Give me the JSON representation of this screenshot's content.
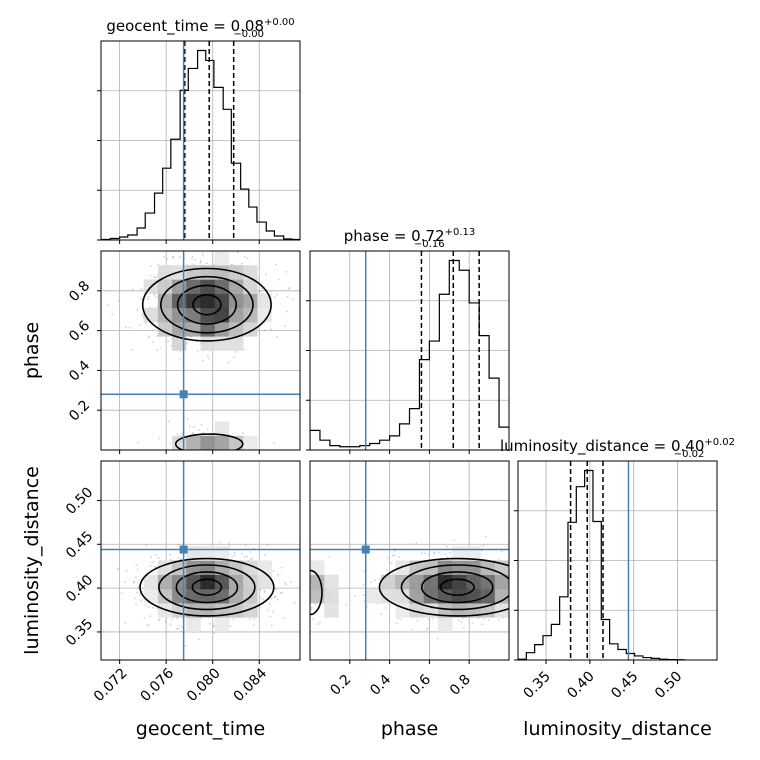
{
  "chart_data": {
    "type": "corner",
    "parameters": [
      "geocent_time",
      "phase",
      "luminosity_distance"
    ],
    "titles": [
      {
        "param": "geocent_time",
        "prefix": "geocent_time = 0.08",
        "plus": "+0.00",
        "minus": "−0.00"
      },
      {
        "param": "phase",
        "prefix": "phase = 0.72",
        "plus": "+0.13",
        "minus": "−0.16"
      },
      {
        "param": "luminosity_distance",
        "prefix": "luminosity_distance = 0.40",
        "plus": "+0.02",
        "minus": "−0.02"
      }
    ],
    "ranges": {
      "geocent_time": [
        0.0704,
        0.0875
      ],
      "phase": [
        0.0,
        1.0
      ],
      "luminosity_distance": [
        0.318,
        0.545
      ]
    },
    "truths": {
      "geocent_time": 0.0775,
      "phase": 0.28,
      "luminosity_distance": 0.444
    },
    "quantiles": {
      "geocent_time": [
        0.0776,
        0.0797,
        0.0818
      ],
      "phase": [
        0.56,
        0.72,
        0.85
      ],
      "luminosity_distance": [
        0.378,
        0.397,
        0.415
      ]
    },
    "histograms": {
      "geocent_time": {
        "bin_edges": [
          0.0705,
          0.0712,
          0.072,
          0.0727,
          0.0735,
          0.0742,
          0.075,
          0.0757,
          0.0764,
          0.0772,
          0.0779,
          0.0787,
          0.0794,
          0.0801,
          0.0809,
          0.0816,
          0.0824,
          0.0831,
          0.0838,
          0.0846,
          0.0853,
          0.0861,
          0.0868,
          0.0875
        ],
        "counts": [
          0.5,
          1.5,
          3,
          5,
          12,
          27,
          47,
          72,
          101,
          150,
          172,
          190,
          180,
          153,
          131,
          77,
          51,
          33,
          18,
          9,
          4,
          1,
          0.5
        ]
      },
      "phase": {
        "bin_edges": [
          0.0,
          0.05,
          0.1,
          0.15,
          0.2,
          0.25,
          0.3,
          0.35,
          0.4,
          0.45,
          0.5,
          0.55,
          0.6,
          0.65,
          0.7,
          0.75,
          0.8,
          0.85,
          0.9,
          0.95,
          1.0
        ],
        "counts": [
          18,
          9,
          4,
          3,
          3,
          4,
          6,
          9,
          13,
          24,
          38,
          83,
          100,
          143,
          174,
          165,
          135,
          105,
          66,
          21
        ]
      },
      "luminosity_distance": {
        "bin_edges": [
          0.318,
          0.3275,
          0.337,
          0.3465,
          0.356,
          0.3655,
          0.375,
          0.3845,
          0.394,
          0.4035,
          0.413,
          0.4225,
          0.432,
          0.4415,
          0.451,
          0.4605,
          0.47,
          0.4795,
          0.489,
          0.4985,
          0.508
        ],
        "counts": [
          1,
          9,
          19,
          30,
          44,
          78,
          170,
          214,
          234,
          171,
          50,
          20,
          13,
          8,
          5,
          3,
          2,
          1,
          0.5,
          0.3
        ]
      }
    },
    "posterior_2d": {
      "phase|geocent_time": {
        "center": [
          0.0795,
          0.73
        ],
        "spread": [
          0.0024,
          0.1
        ],
        "secondary_center": [
          0.0797,
          0.03
        ]
      },
      "luminosity_distance|geocent_time": {
        "center": [
          0.0795,
          0.401
        ],
        "spread": [
          0.0025,
          0.018
        ]
      },
      "luminosity_distance|phase": {
        "center": [
          0.74,
          0.401
        ],
        "spread": [
          0.17,
          0.018
        ],
        "secondary_center": [
          0.0,
          0.395
        ]
      }
    },
    "ticks": {
      "geocent_time": [
        "0.072",
        "0.076",
        "0.080",
        "0.084"
      ],
      "phase": [
        "0.2",
        "0.4",
        "0.6",
        "0.8"
      ],
      "luminosity_distance": [
        "0.35",
        "0.40",
        "0.45",
        "0.50"
      ]
    },
    "xlabels": [
      "geocent_time",
      "phase",
      "luminosity_distance"
    ],
    "ylabels": [
      "phase",
      "luminosity_distance"
    ],
    "grid": true,
    "colors": {
      "truth": "#4682b4",
      "hist": "#000000",
      "quantile": "#000000",
      "grid": "#b0b0b0",
      "points": "#9a9a9a"
    }
  }
}
